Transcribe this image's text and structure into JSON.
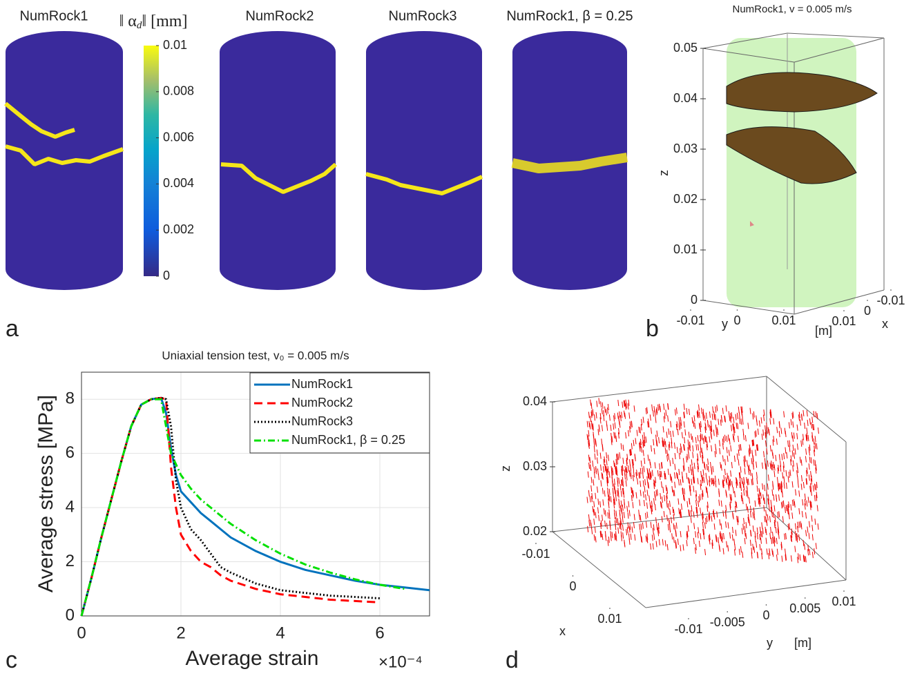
{
  "chart_data": [
    {
      "type": "cylinders",
      "panel_label": "a",
      "titles": [
        "NumRock1",
        "NumRock2",
        "NumRock3",
        "NumRock1, β = 0.25"
      ],
      "colorbar_label": {
        "main": "‖ α",
        "sub": "d",
        "tail": "‖ [mm]"
      },
      "clim": [
        0,
        0.01
      ],
      "cticks": [
        0,
        0.002,
        0.004,
        0.006,
        0.008,
        0.01
      ]
    },
    {
      "type": "box3d",
      "panel_label": "b",
      "title": "NumRock1, v = 0.005 m/s",
      "zlabel": "z",
      "xlabel": "x",
      "ylabel": "y",
      "unit_label": "[m]",
      "zlim": [
        0,
        0.05
      ],
      "zticks": [
        0,
        0.01,
        0.02,
        0.03,
        0.04,
        0.05
      ],
      "ylim": [
        -0.01,
        0.01
      ],
      "yticks": [
        -0.01,
        0,
        0.01
      ],
      "xlim": [
        0.01,
        -0.01
      ],
      "xticks": [
        0.01,
        0,
        -0.01
      ]
    },
    {
      "type": "line",
      "panel_label": "c",
      "title": "Uniaxial tension test, v₀ = 0.005 m/s",
      "xlabel": "Average strain",
      "ylabel": "Average stress [MPa]",
      "x_multiplier": "×10⁻⁴",
      "xlim": [
        0,
        7
      ],
      "xticks": [
        0,
        2,
        4,
        6
      ],
      "ylim": [
        0,
        9
      ],
      "yticks": [
        0,
        2,
        4,
        6,
        8
      ],
      "grid": true,
      "legend": "upper right",
      "x": [
        0,
        0.2,
        0.4,
        0.6,
        0.8,
        1.0,
        1.2,
        1.4,
        1.6,
        1.7,
        1.8,
        1.9,
        2.0,
        2.2,
        2.4,
        2.6,
        2.8,
        3.0,
        3.5,
        4.0,
        4.5,
        5.0,
        5.5,
        6.0,
        6.5,
        7.0
      ],
      "series": [
        {
          "name": "NumRock1",
          "color": "#0072bd",
          "dash": "solid",
          "values": [
            0,
            1.4,
            2.9,
            4.3,
            5.7,
            7.0,
            7.8,
            8.0,
            8.05,
            7.5,
            6.2,
            5.2,
            4.6,
            4.2,
            3.8,
            3.5,
            3.2,
            2.9,
            2.4,
            2.0,
            1.7,
            1.5,
            1.3,
            1.15,
            1.05,
            0.95
          ]
        },
        {
          "name": "NumRock2",
          "color": "#ff0000",
          "dash": "dashed",
          "values": [
            0,
            1.4,
            2.9,
            4.3,
            5.7,
            7.0,
            7.8,
            8.0,
            8.05,
            8.0,
            5.5,
            4.0,
            3.0,
            2.4,
            2.0,
            1.8,
            1.5,
            1.3,
            1.0,
            0.8,
            0.7,
            0.6,
            0.55,
            0.5,
            null,
            null
          ]
        },
        {
          "name": "NumRock3",
          "color": "#000000",
          "dash": "dotted",
          "values": [
            0,
            1.4,
            2.9,
            4.3,
            5.7,
            7.0,
            7.8,
            8.0,
            8.05,
            8.0,
            7.0,
            5.0,
            4.0,
            3.2,
            2.8,
            2.3,
            1.8,
            1.6,
            1.2,
            0.95,
            0.85,
            0.75,
            0.7,
            0.65,
            null,
            null
          ]
        },
        {
          "name": "NumRock1, β = 0.25",
          "color": "#00e000",
          "dash": "dashdot",
          "values": [
            0,
            1.4,
            2.9,
            4.3,
            5.7,
            7.0,
            7.8,
            8.0,
            8.0,
            7.0,
            6.0,
            5.6,
            5.2,
            4.7,
            4.3,
            4.0,
            3.7,
            3.4,
            2.8,
            2.3,
            1.9,
            1.6,
            1.35,
            1.15,
            1.0,
            null
          ]
        }
      ]
    },
    {
      "type": "box3d",
      "panel_label": "d",
      "zlabel": "z",
      "xlabel": "x",
      "ylabel": "y",
      "unit_label": "[m]",
      "zlim": [
        0.02,
        0.04
      ],
      "zticks": [
        0.02,
        0.03,
        0.04
      ],
      "xlim": [
        -0.01,
        0.01
      ],
      "xticks": [
        -0.01,
        0,
        0.01
      ],
      "ylim": [
        -0.01,
        0.01
      ],
      "yticks": [
        -0.01,
        -0.005,
        0,
        0.005,
        0.01
      ]
    }
  ]
}
